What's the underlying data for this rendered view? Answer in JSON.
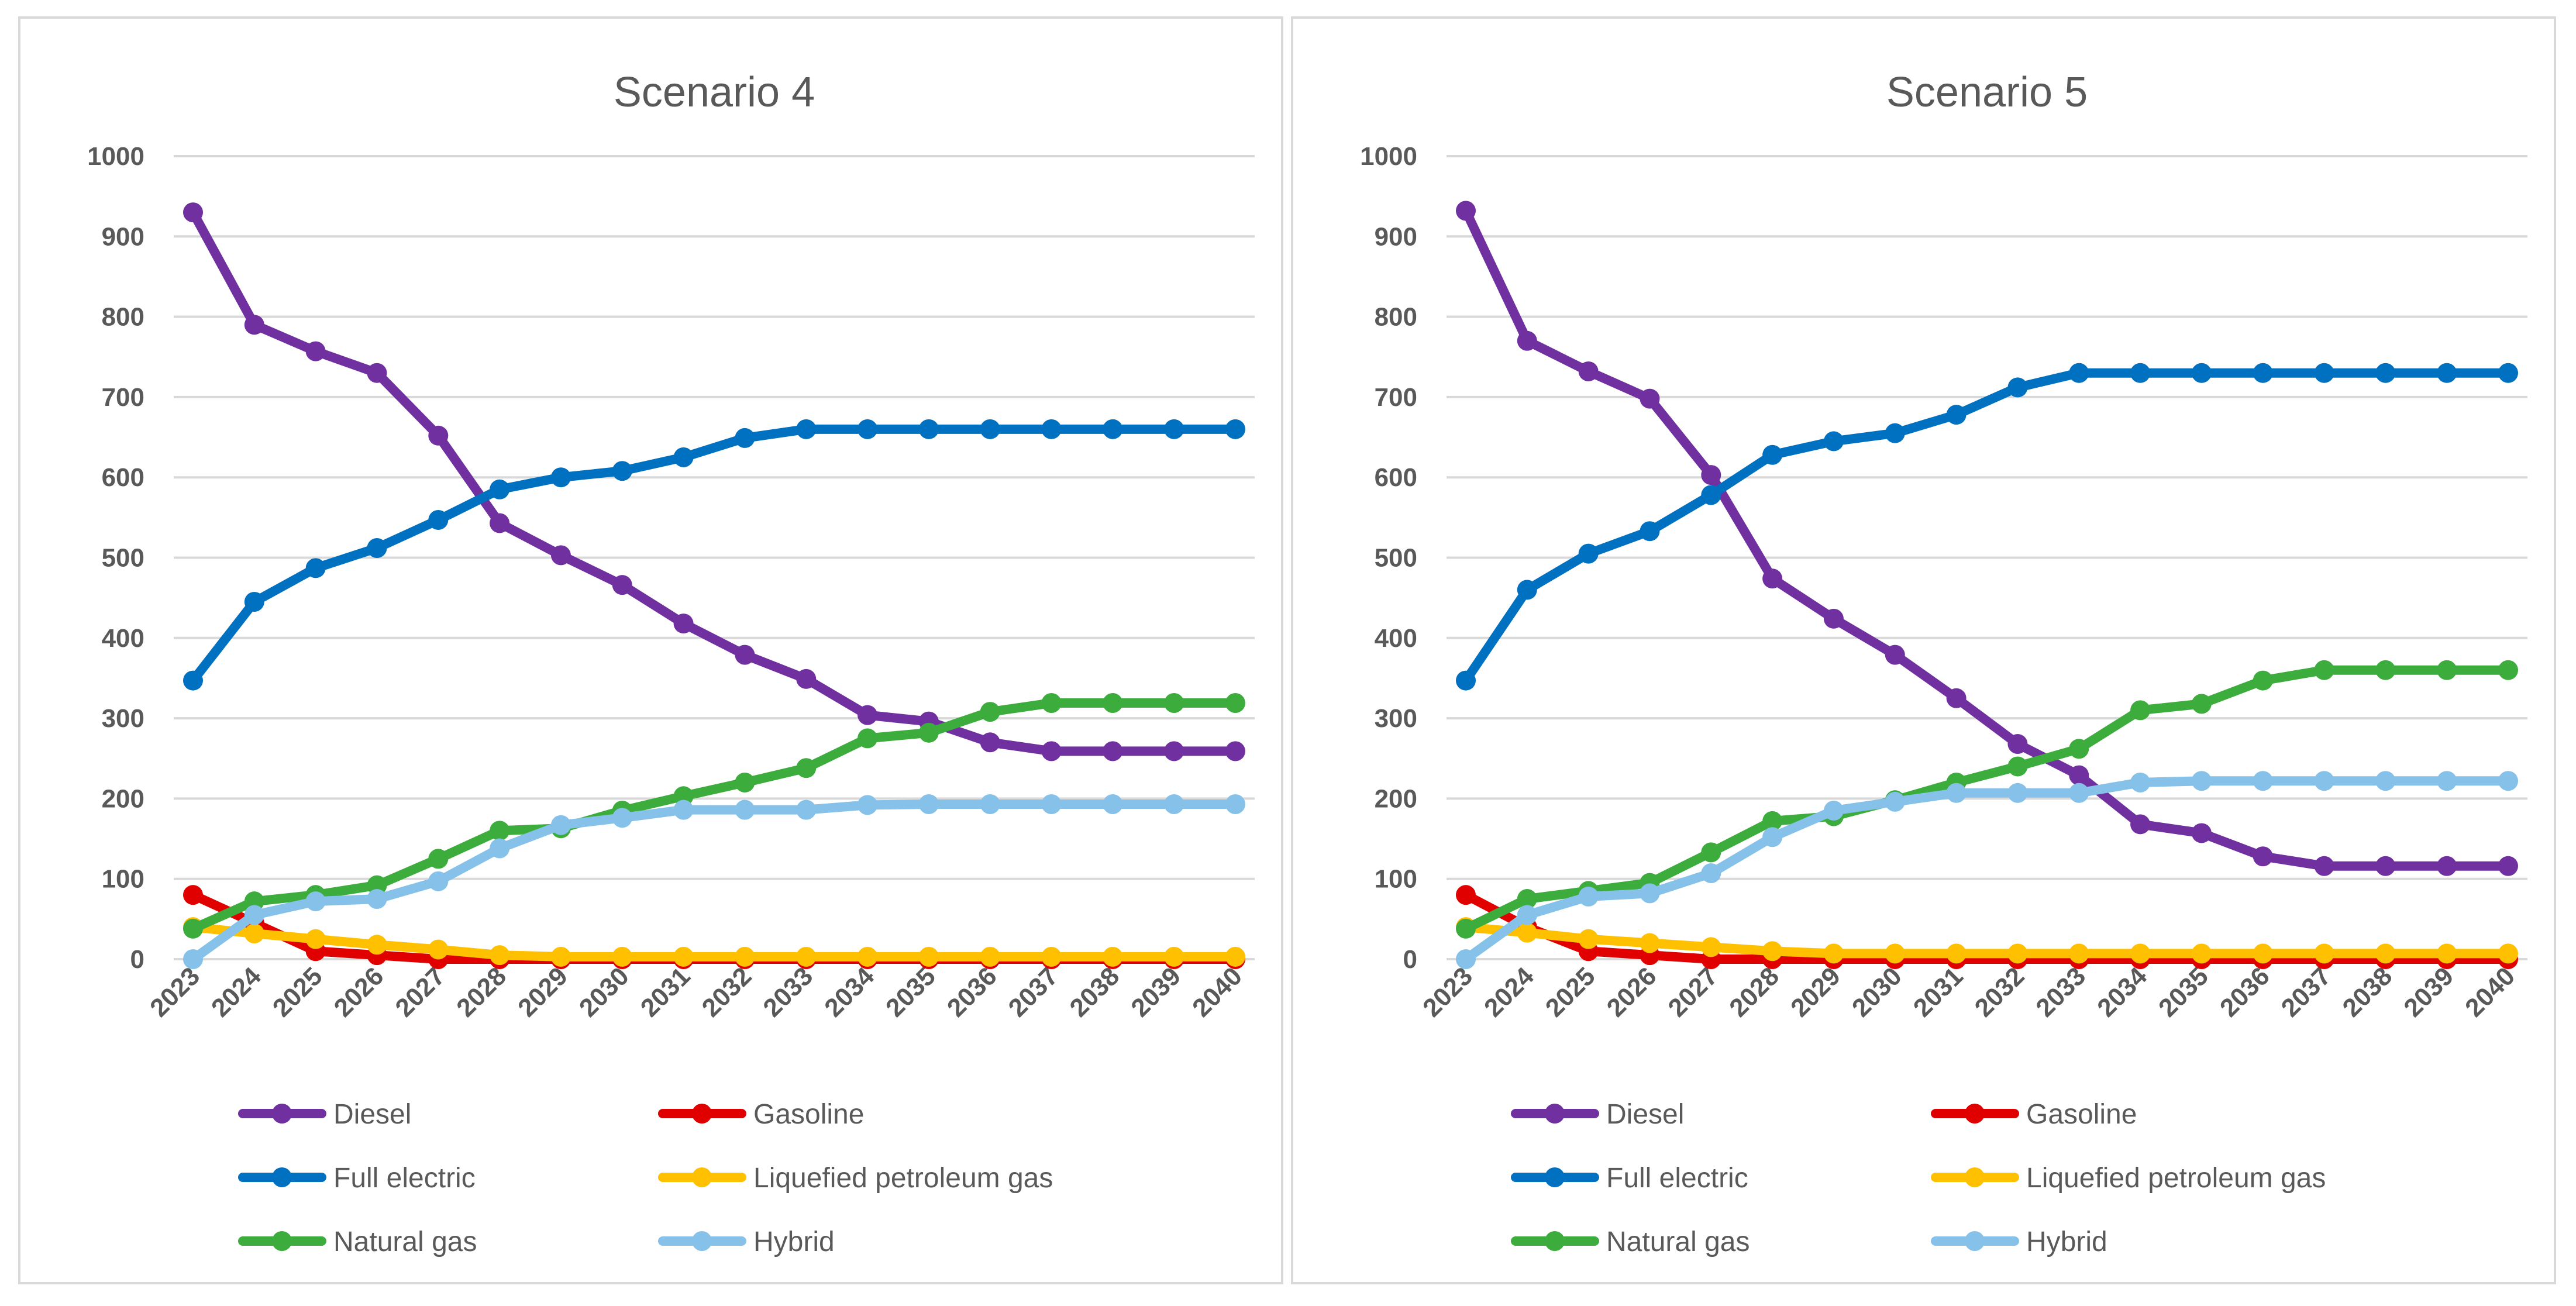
{
  "chart_data": [
    {
      "type": "line",
      "title": "Scenario 4",
      "xlabel": "",
      "ylabel": "",
      "ylim": [
        0,
        1000
      ],
      "yticks": [
        "0",
        "100",
        "200",
        "300",
        "400",
        "500",
        "600",
        "700",
        "800",
        "900",
        "1000"
      ],
      "grid": true,
      "legend_position": "bottom",
      "categories": [
        "2023",
        "2024",
        "2025",
        "2026",
        "2027",
        "2028",
        "2029",
        "2030",
        "2031",
        "2032",
        "2033",
        "2034",
        "2035",
        "2036",
        "2037",
        "2038",
        "2039",
        "2040"
      ],
      "series": [
        {
          "name": "Diesel",
          "color": "#7030a0",
          "values": [
            930,
            790,
            757,
            730,
            652,
            543,
            503,
            466,
            418,
            379,
            349,
            304,
            296,
            270,
            259,
            259,
            259,
            259
          ]
        },
        {
          "name": "Gasoline",
          "color": "#e00000",
          "values": [
            80,
            45,
            10,
            5,
            0,
            0,
            0,
            0,
            0,
            0,
            0,
            0,
            0,
            0,
            0,
            0,
            0,
            0
          ]
        },
        {
          "name": "Full electric",
          "color": "#0070c0",
          "values": [
            347,
            445,
            487,
            512,
            547,
            585,
            600,
            608,
            625,
            649,
            660,
            660,
            660,
            660,
            660,
            660,
            660,
            660
          ]
        },
        {
          "name": "Liquefied petroleum gas",
          "color": "#ffc000",
          "values": [
            40,
            32,
            25,
            18,
            12,
            5,
            3,
            3,
            3,
            3,
            3,
            3,
            3,
            3,
            3,
            3,
            3,
            3
          ]
        },
        {
          "name": "Natural gas",
          "color": "#3cad3c",
          "values": [
            38,
            72,
            80,
            92,
            125,
            160,
            163,
            185,
            203,
            220,
            238,
            275,
            282,
            308,
            319,
            319,
            319,
            319
          ]
        },
        {
          "name": "Hybrid",
          "color": "#85c1e9",
          "values": [
            0,
            55,
            72,
            75,
            97,
            138,
            167,
            176,
            186,
            186,
            186,
            192,
            193,
            193,
            193,
            193,
            193,
            193
          ]
        }
      ]
    },
    {
      "type": "line",
      "title": "Scenario 5",
      "xlabel": "",
      "ylabel": "",
      "ylim": [
        0,
        1000
      ],
      "yticks": [
        "0",
        "100",
        "200",
        "300",
        "400",
        "500",
        "600",
        "700",
        "800",
        "900",
        "1000"
      ],
      "grid": true,
      "legend_position": "bottom",
      "categories": [
        "2023",
        "2024",
        "2025",
        "2026",
        "2027",
        "2028",
        "2029",
        "2030",
        "2031",
        "2032",
        "2033",
        "2034",
        "2035",
        "2036",
        "2037",
        "2038",
        "2039",
        "2040"
      ],
      "series": [
        {
          "name": "Diesel",
          "color": "#7030a0",
          "values": [
            932,
            770,
            732,
            698,
            603,
            474,
            424,
            379,
            325,
            268,
            229,
            168,
            157,
            128,
            116,
            116,
            116,
            116
          ]
        },
        {
          "name": "Gasoline",
          "color": "#e00000",
          "values": [
            80,
            40,
            10,
            5,
            0,
            0,
            0,
            0,
            0,
            0,
            0,
            0,
            0,
            0,
            0,
            0,
            0,
            0
          ]
        },
        {
          "name": "Full electric",
          "color": "#0070c0",
          "values": [
            347,
            460,
            505,
            533,
            578,
            628,
            645,
            655,
            678,
            712,
            730,
            730,
            730,
            730,
            730,
            730,
            730,
            730
          ]
        },
        {
          "name": "Liquefied petroleum gas",
          "color": "#ffc000",
          "values": [
            40,
            33,
            25,
            20,
            15,
            10,
            7,
            7,
            7,
            7,
            7,
            7,
            7,
            7,
            7,
            7,
            7,
            7
          ]
        },
        {
          "name": "Natural gas",
          "color": "#3cad3c",
          "values": [
            38,
            75,
            85,
            95,
            133,
            172,
            178,
            198,
            220,
            240,
            262,
            310,
            318,
            347,
            360,
            360,
            360,
            360
          ]
        },
        {
          "name": "Hybrid",
          "color": "#85c1e9",
          "values": [
            0,
            55,
            78,
            82,
            107,
            152,
            185,
            196,
            207,
            207,
            207,
            220,
            222,
            222,
            222,
            222,
            222,
            222
          ]
        }
      ]
    }
  ]
}
